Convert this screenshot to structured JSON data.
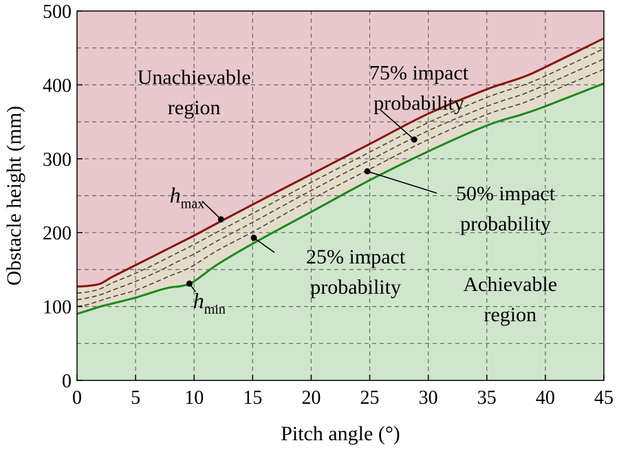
{
  "chart_data": {
    "type": "line",
    "xlabel": "Pitch angle (°)",
    "ylabel": "Obstacle height (mm)",
    "xlim": [
      0,
      45
    ],
    "ylim": [
      0,
      500
    ],
    "x_ticks": [
      0,
      5,
      10,
      15,
      20,
      25,
      30,
      35,
      40,
      45
    ],
    "y_ticks": [
      0,
      100,
      200,
      300,
      400,
      500
    ],
    "x_tick_labels": [
      "0",
      "5",
      "10",
      "15",
      "20",
      "25",
      "30",
      "35",
      "40",
      "45"
    ],
    "y_tick_labels": [
      "0",
      "100",
      "200",
      "300",
      "400",
      "500"
    ],
    "grid": true,
    "grid_style": "dashed",
    "colors": {
      "unachievable_fill": "#e8c8cc",
      "achievable_fill": "#cfe6cc",
      "band_fill": "#e3dccd",
      "hmax_line": "#8b1010",
      "hmin_line": "#1a8a1a",
      "probability_line": "#5a4020",
      "grid": "#666666"
    },
    "x": [
      0,
      1,
      2,
      3,
      5,
      7,
      8,
      9,
      10,
      12,
      15,
      20,
      25,
      30,
      35,
      38,
      40,
      45
    ],
    "series": [
      {
        "name": "h_max",
        "style": "solid",
        "values": [
          127,
          128,
          131,
          140,
          156,
          172,
          180,
          188,
          196,
          213,
          238,
          279,
          320,
          361,
          394,
          410,
          424,
          463
        ]
      },
      {
        "name": "75% impact probability",
        "style": "dashed",
        "values": [
          118,
          120,
          124,
          132,
          145,
          160,
          168,
          176,
          184,
          201,
          226,
          268,
          309,
          349,
          383,
          399,
          412,
          449
        ]
      },
      {
        "name": "50% impact probability",
        "style": "dashed",
        "values": [
          109,
          112,
          116,
          122,
          134,
          148,
          156,
          164,
          171,
          189,
          214,
          257,
          298,
          338,
          371,
          387,
          400,
          435
        ]
      },
      {
        "name": "25% impact probability",
        "style": "dashed",
        "values": [
          100,
          103,
          108,
          113,
          122,
          135,
          142,
          148,
          156,
          176,
          201,
          245,
          286,
          326,
          360,
          375,
          388,
          421
        ]
      },
      {
        "name": "h_min",
        "style": "solid",
        "values": [
          90,
          95,
          100,
          104,
          112,
          122,
          126,
          128,
          134,
          157,
          185,
          228,
          271,
          310,
          345,
          360,
          371,
          402
        ]
      }
    ],
    "regions": [
      {
        "label_lines": [
          "Unachievable",
          "region"
        ],
        "position": "upper-left",
        "at": [
          10,
          390
        ]
      },
      {
        "label_lines": [
          "Achievable",
          "region"
        ],
        "position": "lower-right",
        "at": [
          37,
          110
        ]
      }
    ],
    "annotations": [
      {
        "id": "hmax",
        "symbol": "h",
        "subscript": "max",
        "point": [
          12.3,
          218
        ],
        "text_at": [
          9.4,
          250
        ]
      },
      {
        "id": "hmin",
        "symbol": "h",
        "subscript": "min",
        "point": [
          9.6,
          131
        ],
        "text_at": [
          11.3,
          107
        ]
      },
      {
        "id": "p75",
        "lines": [
          "75% impact",
          "probability"
        ],
        "point": [
          28.8,
          326
        ],
        "text_at": [
          29.2,
          396
        ]
      },
      {
        "id": "p50",
        "lines": [
          "50% impact",
          "probability"
        ],
        "point": [
          24.8,
          283
        ],
        "text_at": [
          36.6,
          233
        ]
      },
      {
        "id": "p25",
        "lines": [
          "25% impact",
          "probability"
        ],
        "point": [
          15.1,
          193
        ],
        "text_at": [
          23.8,
          147
        ]
      }
    ]
  }
}
